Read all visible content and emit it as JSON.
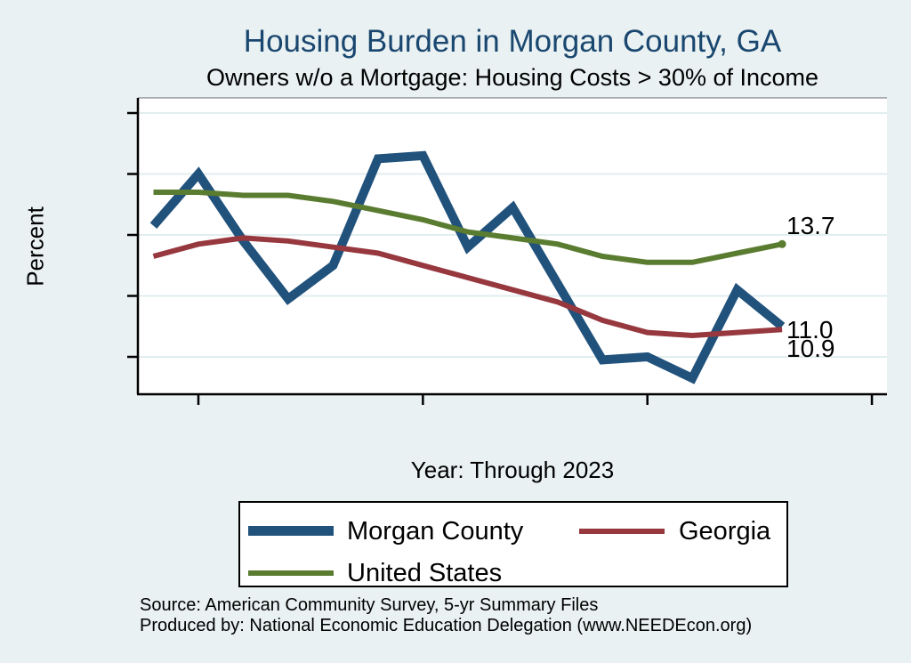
{
  "header": {
    "title": "Housing Burden in Morgan County, GA",
    "subtitle": "Owners w/o a Mortgage: Housing Costs > 30% of Income"
  },
  "chart_data": {
    "type": "line",
    "title": "Housing Burden in Morgan County, GA",
    "subtitle": "Owners w/o a Mortgage: Housing Costs > 30% of Income",
    "xlabel": "Year: Through 2023",
    "ylabel": "Percent",
    "x": [
      9,
      10,
      11,
      12,
      13,
      14,
      15,
      16,
      17,
      18,
      19,
      20,
      21,
      22,
      23
    ],
    "x_ticks": [
      "10",
      "15",
      "20",
      "25"
    ],
    "y_ticks": [
      "10",
      "12",
      "14",
      "16",
      "18"
    ],
    "xlim": [
      8.65,
      25.35
    ],
    "ylim": [
      8.8,
      18.5
    ],
    "grid": "horizontal",
    "legend_position": "bottom-box",
    "series": [
      {
        "name": "Morgan County",
        "color": "#21527c",
        "line_width": 10,
        "end_label": "11.0",
        "end_marker": false,
        "values": [
          14.3,
          16.0,
          13.8,
          11.9,
          13.0,
          16.5,
          16.6,
          13.6,
          14.9,
          12.4,
          9.9,
          10.0,
          9.3,
          12.2,
          11.0
        ]
      },
      {
        "name": "Georgia",
        "color": "#97383f",
        "line_width": 6,
        "end_label": "10.9",
        "end_marker": false,
        "values": [
          13.3,
          13.7,
          13.9,
          13.8,
          13.6,
          13.4,
          13.0,
          12.6,
          12.2,
          11.8,
          11.2,
          10.8,
          10.7,
          10.8,
          10.9
        ]
      },
      {
        "name": "United States",
        "color": "#5a7c30",
        "line_width": 6,
        "end_label": "13.7",
        "end_marker": true,
        "values": [
          15.4,
          15.4,
          15.3,
          15.3,
          15.1,
          14.8,
          14.5,
          14.1,
          13.9,
          13.7,
          13.3,
          13.1,
          13.1,
          13.4,
          13.7
        ]
      }
    ]
  },
  "footer": {
    "source": "Source: American Community Survey, 5-yr Summary Files",
    "produced_by": "Produced by: National Economic Education Delegation (www.NEEDEcon.org)"
  },
  "colors": {
    "background": "#e9f1f2",
    "plot_background": "#ffffff",
    "gridline": "#e2edef",
    "axis": "#000000",
    "title": "#1a476f"
  }
}
